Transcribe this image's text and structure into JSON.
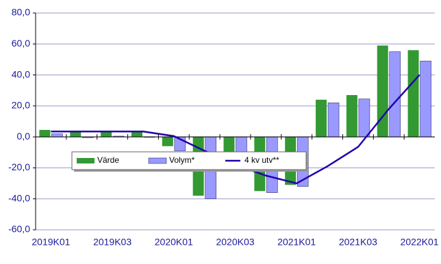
{
  "chart_data": {
    "type": "bar",
    "categories": [
      "2019K01",
      null,
      "2019K03",
      null,
      "2020K01",
      null,
      "2020K03",
      null,
      "2021K01",
      null,
      "2021K03",
      null,
      "2022K01"
    ],
    "series": [
      {
        "name": "Värde",
        "color": "#339933",
        "values": [
          4.5,
          3,
          3,
          3,
          -6,
          -38,
          -12,
          -35,
          -31,
          24,
          27,
          59,
          56
        ]
      },
      {
        "name": "Volym*",
        "color": "#9999ff",
        "values": [
          2,
          -0.5,
          0.5,
          -0.3,
          -9,
          -40,
          -12,
          -36,
          -32,
          22,
          24.5,
          55,
          49
        ]
      },
      {
        "name": "4 kv utv**",
        "color": "#2200aa",
        "type": "line",
        "values": [
          3.5,
          3.5,
          3.5,
          3.5,
          0.5,
          -9,
          -18,
          -25,
          -30,
          -19,
          -6.5,
          18,
          40
        ]
      }
    ],
    "ylim": [
      -60,
      80
    ],
    "yticks": [
      {
        "value": -60,
        "label": "-60,0"
      },
      {
        "value": -40,
        "label": "-40,0"
      },
      {
        "value": -20,
        "label": "-20,0"
      },
      {
        "value": 0,
        "label": "0,0"
      },
      {
        "value": 20,
        "label": "20,0"
      },
      {
        "value": 40,
        "label": "40,0"
      },
      {
        "value": 60,
        "label": "60,0"
      },
      {
        "value": 80,
        "label": "80,0"
      }
    ],
    "grid": true
  }
}
